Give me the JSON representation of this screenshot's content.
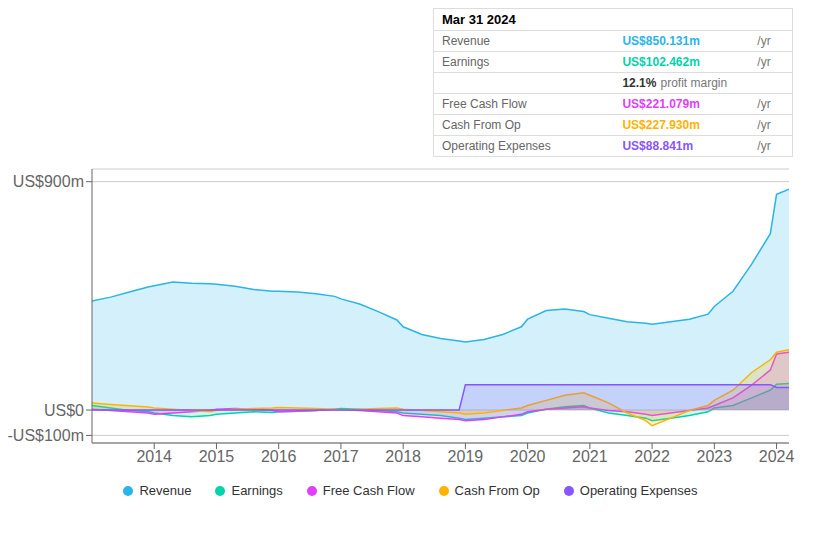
{
  "chart_data": {
    "type": "area",
    "x": [
      2013.0,
      2013.3,
      2013.6,
      2013.9,
      2014.0,
      2014.3,
      2014.6,
      2014.9,
      2015.0,
      2015.3,
      2015.6,
      2015.9,
      2016.0,
      2016.3,
      2016.6,
      2016.9,
      2017.0,
      2017.3,
      2017.6,
      2017.9,
      2018.0,
      2018.3,
      2018.6,
      2018.9,
      2019.0,
      2019.3,
      2019.6,
      2019.9,
      2020.0,
      2020.3,
      2020.6,
      2020.9,
      2021.0,
      2021.3,
      2021.6,
      2021.9,
      2022.0,
      2022.3,
      2022.6,
      2022.9,
      2023.0,
      2023.3,
      2023.6,
      2023.9,
      2024.0,
      2024.2
    ],
    "series": [
      {
        "name": "Revenue",
        "color": "#29b5e8",
        "values": [
          430,
          445,
          465,
          485,
          490,
          505,
          500,
          498,
          496,
          488,
          475,
          468,
          468,
          465,
          458,
          448,
          438,
          418,
          388,
          355,
          328,
          298,
          282,
          272,
          268,
          278,
          298,
          328,
          358,
          392,
          398,
          388,
          376,
          362,
          348,
          342,
          338,
          348,
          358,
          378,
          408,
          468,
          575,
          695,
          850,
          870
        ]
      },
      {
        "name": "Earnings",
        "color": "#00d4aa",
        "values": [
          18,
          8,
          -2,
          -6,
          -12,
          -22,
          -27,
          -22,
          -17,
          -12,
          -7,
          -10,
          -7,
          -5,
          -2,
          3,
          6,
          3,
          -2,
          -7,
          -12,
          -17,
          -22,
          -32,
          -37,
          -32,
          -27,
          -22,
          -12,
          3,
          13,
          18,
          8,
          -12,
          -22,
          -32,
          -42,
          -32,
          -22,
          -7,
          8,
          18,
          48,
          78,
          102,
          105
        ]
      },
      {
        "name": "Free Cash Flow",
        "color": "#e040fb",
        "values": [
          3,
          -2,
          -7,
          -12,
          -17,
          -12,
          -7,
          -2,
          3,
          6,
          3,
          -2,
          -7,
          -5,
          -2,
          3,
          1,
          -2,
          -7,
          -12,
          -22,
          -27,
          -32,
          -37,
          -42,
          -37,
          -27,
          -17,
          -7,
          3,
          8,
          13,
          8,
          -2,
          -7,
          -17,
          -22,
          -12,
          -2,
          8,
          18,
          48,
          98,
          158,
          221,
          228
        ]
      },
      {
        "name": "Cash From Op",
        "color": "#ffb300",
        "values": [
          28,
          22,
          17,
          12,
          8,
          3,
          -2,
          -7,
          -2,
          3,
          6,
          8,
          10,
          8,
          6,
          3,
          1,
          3,
          6,
          8,
          3,
          -2,
          -7,
          -12,
          -17,
          -12,
          -2,
          8,
          18,
          38,
          58,
          68,
          58,
          28,
          -12,
          -42,
          -62,
          -32,
          -2,
          18,
          38,
          78,
          148,
          198,
          228,
          238
        ]
      },
      {
        "name": "Operating Expenses",
        "color": "#8855ff",
        "values": [
          0,
          0,
          0,
          0,
          0,
          0,
          0,
          0,
          0,
          0,
          0,
          0,
          0,
          0,
          0,
          0,
          0,
          0,
          0,
          0,
          0,
          0,
          0,
          0,
          100,
          100,
          100,
          100,
          100,
          100,
          100,
          100,
          100,
          100,
          100,
          100,
          100,
          100,
          100,
          100,
          100,
          100,
          100,
          100,
          89,
          89
        ]
      }
    ],
    "xlim": [
      2013.0,
      2024.2
    ],
    "xticks": [
      2014,
      2015,
      2016,
      2017,
      2018,
      2019,
      2020,
      2021,
      2022,
      2023,
      2024
    ],
    "ylim": [
      -130,
      950
    ],
    "yticks": [
      {
        "value": -100,
        "label": "-US$100m"
      },
      {
        "value": 0,
        "label": "US$0"
      },
      {
        "value": 900,
        "label": "US$900m"
      }
    ],
    "grid": true,
    "legend": "bottom",
    "annotations": [
      {
        "text": "Mar 31 2024"
      },
      {
        "label": "Revenue",
        "value": "US$850.131m",
        "suffix": "/yr"
      },
      {
        "label": "Earnings",
        "value": "US$102.462m",
        "suffix": "/yr"
      },
      {
        "value": "12.1%",
        "suffix": "profit margin"
      },
      {
        "label": "Free Cash Flow",
        "value": "US$221.079m",
        "suffix": "/yr"
      },
      {
        "label": "Cash From Op",
        "value": "US$227.930m",
        "suffix": "/yr"
      },
      {
        "label": "Operating Expenses",
        "value": "US$88.841m",
        "suffix": "/yr"
      }
    ]
  }
}
